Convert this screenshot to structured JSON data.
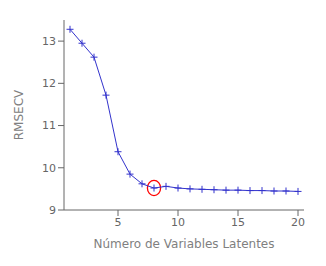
{
  "chart_data": {
    "type": "line",
    "x": [
      1,
      2,
      3,
      4,
      5,
      6,
      7,
      8,
      9,
      10,
      11,
      12,
      13,
      14,
      15,
      16,
      17,
      18,
      19,
      20
    ],
    "values": [
      13.28,
      12.95,
      12.62,
      11.72,
      10.38,
      9.85,
      9.62,
      9.52,
      9.56,
      9.52,
      9.5,
      9.49,
      9.48,
      9.47,
      9.47,
      9.46,
      9.46,
      9.45,
      9.45,
      9.44
    ],
    "color": "#3333cc",
    "marker": "plus",
    "x_label": "Número de Variables Latentes",
    "y_label": "RMSECV",
    "xlim": [
      0.5,
      20.5
    ],
    "ylim": [
      9,
      13.5
    ],
    "xticks": [
      5,
      10,
      15,
      20
    ],
    "yticks": [
      9,
      10,
      11,
      12,
      13
    ],
    "grid": false,
    "highlight": {
      "x": 8,
      "y": 9.52,
      "x_radius": 0.55,
      "y_radius": 0.18,
      "color": "red"
    }
  }
}
